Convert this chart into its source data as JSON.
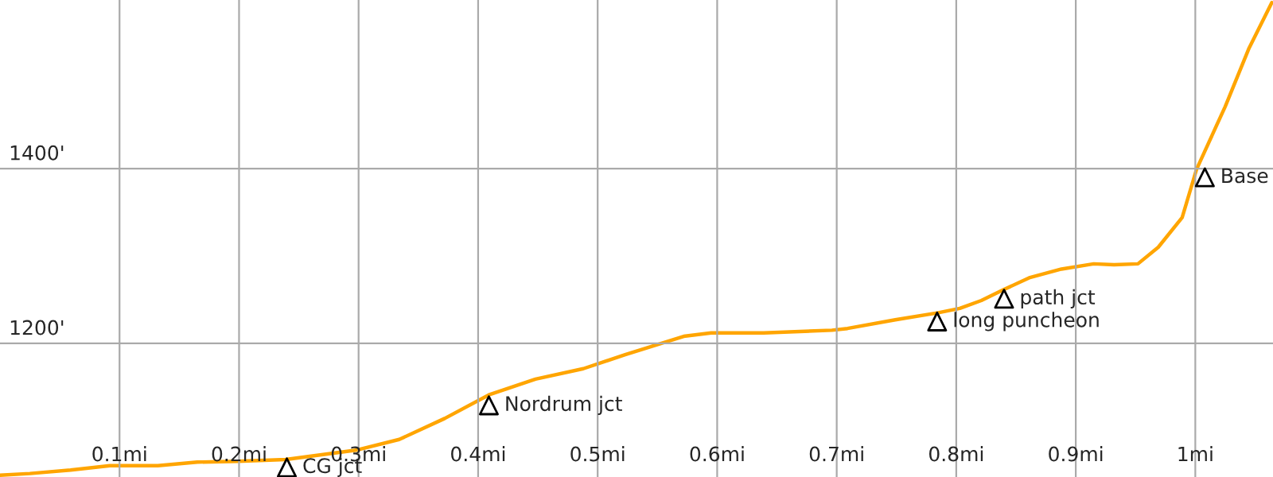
{
  "chart_data": {
    "type": "line",
    "x": [
      0,
      0.025,
      0.059,
      0.092,
      0.132,
      0.165,
      0.199,
      0.239,
      0.299,
      0.334,
      0.372,
      0.409,
      0.448,
      0.488,
      0.523,
      0.572,
      0.595,
      0.639,
      0.696,
      0.709,
      0.749,
      0.785,
      0.803,
      0.821,
      0.839,
      0.861,
      0.888,
      0.915,
      0.932,
      0.952,
      0.969,
      0.989,
      1.001,
      1.025,
      1.045,
      1.064
    ],
    "series": [
      {
        "color": "#ffa500",
        "values": [
          1049,
          1051,
          1055,
          1060,
          1060,
          1064,
          1065,
          1067,
          1078,
          1090,
          1114,
          1141,
          1159,
          1171,
          1187,
          1208,
          1212,
          1212,
          1215,
          1217,
          1227,
          1235,
          1240,
          1249,
          1261,
          1275,
          1285,
          1291,
          1290,
          1291,
          1310,
          1344,
          1399,
          1471,
          1538,
          1590
        ]
      },
      {
        "type": "scatter",
        "color": "#000000",
        "marker": "triangle",
        "x": [
          0.24,
          0.409,
          0.784,
          0.84,
          1.008
        ],
        "values": [
          1058,
          1129,
          1225,
          1251,
          1390
        ]
      }
    ],
    "xlim": [
      0,
      1.065
    ],
    "ylim": [
      1047,
      1593
    ],
    "xticks": [
      {
        "value": 0.1,
        "label": "0.1mi"
      },
      {
        "value": 0.2,
        "label": "0.2mi"
      },
      {
        "value": 0.3,
        "label": "0.3mi"
      },
      {
        "value": 0.4,
        "label": "0.4mi"
      },
      {
        "value": 0.5,
        "label": "0.5mi"
      },
      {
        "value": 0.6,
        "label": "0.6mi"
      },
      {
        "value": 0.7,
        "label": "0.7mi"
      },
      {
        "value": 0.8,
        "label": "0.8mi"
      },
      {
        "value": 0.9,
        "label": "0.9mi"
      },
      {
        "value": 1.0,
        "label": "1mi"
      }
    ],
    "yticks": [
      {
        "value": 1200,
        "label": "1200'"
      },
      {
        "value": 1400,
        "label": "1400'"
      }
    ],
    "grid": true,
    "marker": "none",
    "line_style": "solid",
    "legend": false,
    "annotations": [
      {
        "text": "CG jct",
        "x": 0.24,
        "y": 1058
      },
      {
        "text": "Nordrum jct",
        "x": 0.409,
        "y": 1129
      },
      {
        "text": "long puncheon",
        "x": 0.784,
        "y": 1225
      },
      {
        "text": "path jct",
        "x": 0.84,
        "y": 1251
      },
      {
        "text": "Base",
        "x": 1.008,
        "y": 1390
      }
    ]
  }
}
